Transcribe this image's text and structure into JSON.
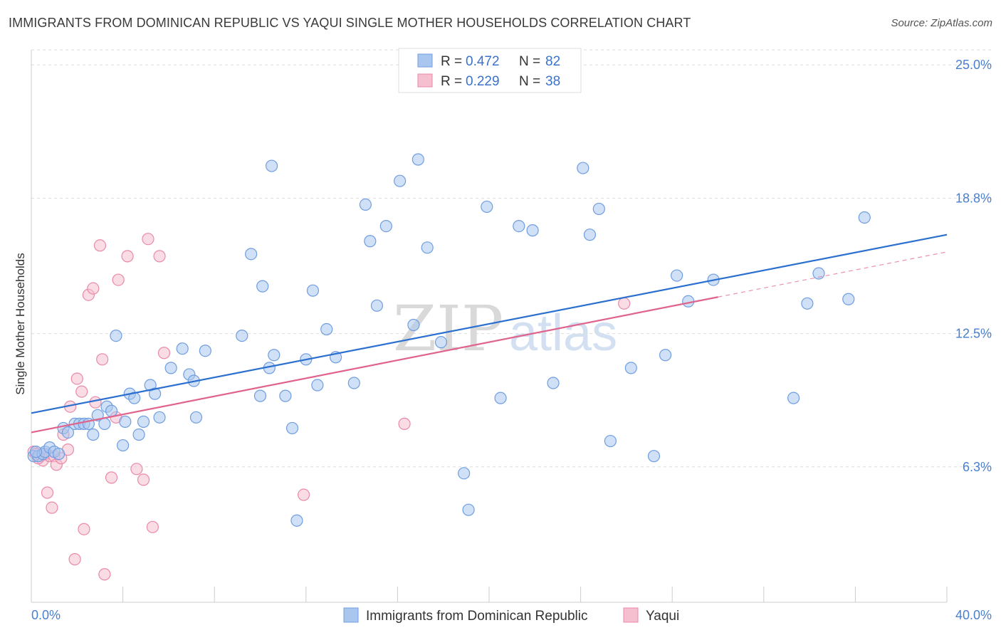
{
  "header": {
    "title": "IMMIGRANTS FROM DOMINICAN REPUBLIC VS YAQUI SINGLE MOTHER HOUSEHOLDS CORRELATION CHART",
    "source": "Source: ZipAtlas.com"
  },
  "watermark": {
    "part1": "ZIP",
    "part2": "atlas"
  },
  "legend": {
    "rows": [
      {
        "r_label": "R =",
        "r_value": "0.472",
        "n_label": "N =",
        "n_value": "82"
      },
      {
        "r_label": "R =",
        "r_value": "0.229",
        "n_label": "N =",
        "n_value": "38"
      }
    ]
  },
  "bottom_legend": {
    "items": [
      {
        "label": "Immigrants from Dominican Republic"
      },
      {
        "label": "Yaqui"
      }
    ]
  },
  "colors": {
    "blue_fill": "#a9c6ef",
    "blue_stroke": "#6f9ee0",
    "blue_line": "#2b6fcf",
    "pink_fill": "#f6bfd0",
    "pink_stroke": "#e98aa8",
    "pink_line": "#e0638c",
    "grid": "#dddddd",
    "tick_label": "#4a7fcf"
  },
  "chart_data": {
    "type": "scatter",
    "title": "IMMIGRANTS FROM DOMINICAN REPUBLIC VS YAQUI SINGLE MOTHER HOUSEHOLDS CORRELATION CHART",
    "xlabel": "",
    "ylabel": "Single Mother Households",
    "xlim": [
      0,
      40
    ],
    "ylim": [
      0,
      25.7
    ],
    "x_tick_labels": [
      "0.0%",
      "40.0%"
    ],
    "y_ticks": [
      6.3,
      12.5,
      18.8,
      25.0
    ],
    "y_tick_labels": [
      "6.3%",
      "12.5%",
      "18.8%",
      "25.0%"
    ],
    "grid": true,
    "legend_position": "top-center",
    "series": [
      {
        "name": "Immigrants from Dominican Republic",
        "color": "#a9c6ef",
        "trend": {
          "x": [
            0,
            40
          ],
          "y": [
            8.8,
            17.1
          ]
        },
        "points": [
          [
            0.1,
            6.8
          ],
          [
            0.3,
            6.8
          ],
          [
            0.5,
            6.9
          ],
          [
            0.6,
            7.0
          ],
          [
            0.8,
            7.2
          ],
          [
            1.0,
            7.0
          ],
          [
            1.2,
            6.9
          ],
          [
            1.4,
            8.1
          ],
          [
            1.6,
            7.9
          ],
          [
            1.9,
            8.3
          ],
          [
            2.1,
            8.3
          ],
          [
            2.3,
            8.3
          ],
          [
            2.5,
            8.3
          ],
          [
            2.7,
            7.8
          ],
          [
            2.9,
            8.7
          ],
          [
            3.2,
            8.3
          ],
          [
            3.3,
            9.1
          ],
          [
            3.5,
            8.9
          ],
          [
            3.7,
            12.4
          ],
          [
            4.0,
            7.3
          ],
          [
            4.1,
            8.4
          ],
          [
            4.3,
            9.7
          ],
          [
            4.5,
            9.5
          ],
          [
            4.7,
            7.8
          ],
          [
            4.9,
            8.4
          ],
          [
            5.2,
            10.1
          ],
          [
            5.4,
            9.7
          ],
          [
            5.6,
            8.6
          ],
          [
            6.1,
            10.9
          ],
          [
            6.6,
            11.8
          ],
          [
            6.9,
            10.6
          ],
          [
            7.1,
            10.3
          ],
          [
            7.2,
            8.6
          ],
          [
            7.6,
            11.7
          ],
          [
            9.2,
            12.4
          ],
          [
            9.6,
            16.2
          ],
          [
            10.1,
            14.7
          ],
          [
            10.5,
            20.3
          ],
          [
            10.4,
            10.9
          ],
          [
            10.0,
            9.6
          ],
          [
            10.6,
            11.5
          ],
          [
            11.1,
            9.6
          ],
          [
            11.4,
            8.1
          ],
          [
            11.6,
            3.8
          ],
          [
            12.0,
            11.3
          ],
          [
            12.3,
            14.5
          ],
          [
            12.5,
            10.1
          ],
          [
            12.9,
            12.7
          ],
          [
            13.3,
            11.4
          ],
          [
            14.1,
            10.2
          ],
          [
            14.6,
            18.5
          ],
          [
            14.8,
            16.8
          ],
          [
            15.1,
            13.8
          ],
          [
            15.5,
            17.5
          ],
          [
            16.1,
            19.6
          ],
          [
            16.7,
            12.9
          ],
          [
            16.9,
            20.6
          ],
          [
            17.3,
            16.5
          ],
          [
            17.9,
            12.1
          ],
          [
            18.9,
            6.0
          ],
          [
            19.1,
            4.3
          ],
          [
            19.9,
            18.4
          ],
          [
            20.5,
            9.5
          ],
          [
            21.3,
            17.5
          ],
          [
            21.9,
            17.3
          ],
          [
            22.8,
            10.2
          ],
          [
            24.1,
            20.2
          ],
          [
            24.4,
            17.1
          ],
          [
            24.8,
            18.3
          ],
          [
            25.3,
            7.5
          ],
          [
            26.2,
            10.9
          ],
          [
            27.2,
            6.8
          ],
          [
            27.7,
            11.5
          ],
          [
            28.2,
            15.2
          ],
          [
            28.7,
            14.0
          ],
          [
            29.8,
            15.0
          ],
          [
            33.3,
            9.5
          ],
          [
            33.9,
            13.9
          ],
          [
            34.4,
            15.3
          ],
          [
            35.7,
            14.1
          ],
          [
            36.4,
            17.9
          ],
          [
            0.2,
            7.0
          ]
        ]
      },
      {
        "name": "Yaqui",
        "color": "#f6bfd0",
        "trend": {
          "x": [
            0,
            30
          ],
          "y": [
            7.9,
            14.2
          ]
        },
        "trend_extension": {
          "x": [
            30,
            40
          ],
          "y": [
            14.2,
            16.3
          ]
        },
        "points": [
          [
            0.1,
            7.0
          ],
          [
            0.2,
            6.9
          ],
          [
            0.4,
            6.8
          ],
          [
            0.5,
            6.6
          ],
          [
            0.6,
            6.9
          ],
          [
            0.7,
            5.1
          ],
          [
            0.8,
            6.8
          ],
          [
            0.9,
            4.4
          ],
          [
            1.0,
            6.8
          ],
          [
            1.1,
            6.4
          ],
          [
            1.3,
            6.7
          ],
          [
            1.4,
            7.8
          ],
          [
            1.6,
            7.1
          ],
          [
            1.7,
            9.1
          ],
          [
            1.9,
            2.0
          ],
          [
            2.0,
            10.4
          ],
          [
            2.2,
            9.8
          ],
          [
            2.3,
            3.4
          ],
          [
            2.5,
            14.3
          ],
          [
            2.7,
            14.6
          ],
          [
            2.8,
            9.3
          ],
          [
            3.0,
            16.6
          ],
          [
            3.1,
            11.3
          ],
          [
            3.2,
            1.3
          ],
          [
            3.5,
            5.8
          ],
          [
            3.7,
            8.6
          ],
          [
            3.8,
            15.0
          ],
          [
            4.2,
            16.1
          ],
          [
            4.6,
            6.2
          ],
          [
            4.9,
            5.7
          ],
          [
            5.1,
            16.9
          ],
          [
            5.3,
            3.5
          ],
          [
            5.6,
            16.1
          ],
          [
            5.8,
            11.6
          ],
          [
            11.9,
            5.0
          ],
          [
            16.3,
            8.3
          ],
          [
            25.9,
            13.9
          ],
          [
            0.3,
            6.7
          ]
        ]
      }
    ]
  }
}
